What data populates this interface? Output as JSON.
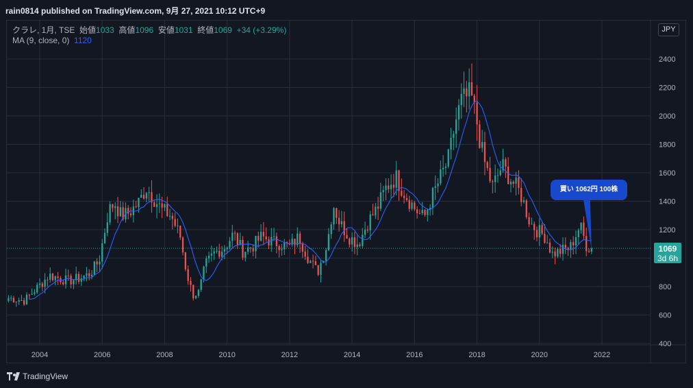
{
  "header": {
    "published": "rain0814 published on TradingView.com, 9月 27, 2021 10:12 UTC+9"
  },
  "legend": {
    "symbol": "クラレ, 1月, TSE",
    "open_label": "始値",
    "open": "1033",
    "high_label": "高値",
    "high": "1096",
    "low_label": "安値",
    "low": "1031",
    "close_label": "終値",
    "close": "1069",
    "change": "+34 (+3.29%)",
    "ma_label": "MA (9, close, 0)",
    "ma_value": "1120"
  },
  "currency": "JPY",
  "price_label": {
    "price": "1069",
    "time": "3d 6h"
  },
  "annotation": "買い 1062円 100株",
  "brand": "TradingView",
  "colors": {
    "up": "#26a69a",
    "down": "#ef5350",
    "ma": "#2962ff",
    "callout": "#1848cc",
    "background": "#131722",
    "grid": "#2a2e39"
  },
  "chart_data": {
    "type": "candlestick",
    "interval": "1 month",
    "ylim": [
      400,
      2500
    ],
    "y_ticks": [
      400,
      600,
      800,
      1000,
      1200,
      1400,
      1600,
      1800,
      2000,
      2200,
      2400
    ],
    "x_ticks": [
      "2004",
      "2006",
      "2008",
      "2010",
      "2012",
      "2014",
      "2016",
      "2018",
      "2020",
      "2022"
    ],
    "last_price": 1069,
    "close_path": [
      [
        2003.0,
        720
      ],
      [
        2003.5,
        700
      ],
      [
        2004.0,
        810
      ],
      [
        2004.3,
        880
      ],
      [
        2004.6,
        860
      ],
      [
        2004.9,
        840
      ],
      [
        2005.3,
        860
      ],
      [
        2005.6,
        890
      ],
      [
        2005.9,
        980
      ],
      [
        2006.0,
        1100
      ],
      [
        2006.2,
        1330
      ],
      [
        2006.4,
        1390
      ],
      [
        2006.6,
        1300
      ],
      [
        2006.8,
        1310
      ],
      [
        2007.0,
        1350
      ],
      [
        2007.2,
        1400
      ],
      [
        2007.4,
        1500
      ],
      [
        2007.6,
        1440
      ],
      [
        2007.9,
        1340
      ],
      [
        2008.2,
        1300
      ],
      [
        2008.5,
        1150
      ],
      [
        2008.7,
        900
      ],
      [
        2008.9,
        740
      ],
      [
        2009.1,
        760
      ],
      [
        2009.3,
        950
      ],
      [
        2009.6,
        1040
      ],
      [
        2009.9,
        1070
      ],
      [
        2010.2,
        1170
      ],
      [
        2010.5,
        1050
      ],
      [
        2010.8,
        1080
      ],
      [
        2011.1,
        1150
      ],
      [
        2011.4,
        1120
      ],
      [
        2011.7,
        1100
      ],
      [
        2012.0,
        1080
      ],
      [
        2012.3,
        1150
      ],
      [
        2012.6,
        1000
      ],
      [
        2012.9,
        900
      ],
      [
        2013.2,
        1100
      ],
      [
        2013.4,
        1380
      ],
      [
        2013.6,
        1250
      ],
      [
        2013.9,
        1150
      ],
      [
        2014.2,
        1100
      ],
      [
        2014.5,
        1250
      ],
      [
        2014.8,
        1350
      ],
      [
        2015.1,
        1500
      ],
      [
        2015.4,
        1570
      ],
      [
        2015.7,
        1450
      ],
      [
        2016.0,
        1350
      ],
      [
        2016.3,
        1280
      ],
      [
        2016.5,
        1400
      ],
      [
        2016.8,
        1550
      ],
      [
        2017.1,
        1700
      ],
      [
        2017.3,
        1950
      ],
      [
        2017.5,
        2100
      ],
      [
        2017.8,
        2150
      ],
      [
        2018.0,
        1950
      ],
      [
        2018.2,
        1700
      ],
      [
        2018.5,
        1500
      ],
      [
        2018.8,
        1650
      ],
      [
        2019.1,
        1550
      ],
      [
        2019.4,
        1450
      ],
      [
        2019.7,
        1250
      ],
      [
        2019.9,
        1200
      ],
      [
        2020.2,
        1150
      ],
      [
        2020.4,
        1030
      ],
      [
        2020.7,
        1050
      ],
      [
        2021.0,
        1080
      ],
      [
        2021.3,
        1230
      ],
      [
        2021.5,
        1090
      ],
      [
        2021.65,
        1069
      ]
    ],
    "ma_period": 9
  }
}
